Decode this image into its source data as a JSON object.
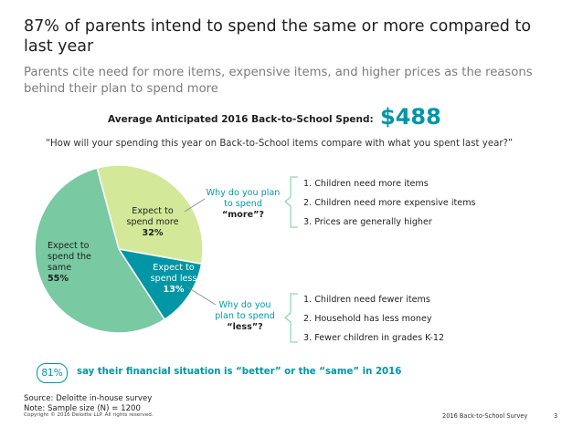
{
  "title": "87% of parents intend to spend the same or more compared to last year",
  "subtitle": "Parents cite need for more items, expensive items, and higher prices as the reasons behind their plan to spend more",
  "spend": {
    "label": "Average Anticipated 2016 Back-to-School Spend:",
    "value": "$488"
  },
  "question": "“How will your spending this year on Back-to-School items compare with what you spent last year?”",
  "colors": {
    "same": "#79c9a3",
    "more": "#d3e899",
    "less": "#0096a6",
    "accent": "#0096a6",
    "bracket": "#79c9a3"
  },
  "chart_data": {
    "type": "pie",
    "slices": [
      {
        "key": "more",
        "label_lines": [
          "Expect to",
          "spend more"
        ],
        "value": 32,
        "value_label": "32%"
      },
      {
        "key": "less",
        "label_lines": [
          "Expect to",
          "spend less"
        ],
        "value": 13,
        "value_label": "13%"
      },
      {
        "key": "same",
        "label_lines": [
          "Expect to",
          "spend the",
          "same"
        ],
        "value": 55,
        "value_label": "55%"
      }
    ]
  },
  "callouts": {
    "more": {
      "question_lines": [
        "Why do  you plan",
        "to spend"
      ],
      "emphasis": "“more”?",
      "reasons": [
        "1.  Children need more items",
        "2.  Children need more expensive items",
        "3.  Prices are generally higher"
      ]
    },
    "less": {
      "question_lines": [
        "Why do you",
        "plan to spend"
      ],
      "emphasis": "“less”?",
      "reasons": [
        "1.  Children need fewer items",
        "2.  Household has less money",
        "3.  Fewer children in grades K-12"
      ]
    }
  },
  "stat": {
    "badge": "81%",
    "text": "say their financial situation is “better” or the “same” in 2016"
  },
  "footer": {
    "source": "Source: Deloitte in-house survey",
    "note": "Note:  Sample size (N) = 1200",
    "copyright": "Copyright © 2016 Deloitte LLP. All rights reserved.",
    "report": "2016 Back-to-School Survey",
    "page": "3"
  }
}
